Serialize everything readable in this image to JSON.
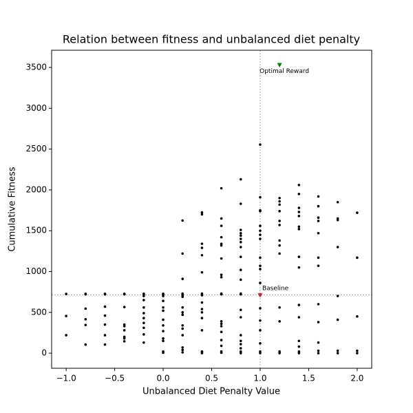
{
  "chart_data": {
    "type": "scatter",
    "title": "Relation between fitness and unbalanced diet penalty",
    "x_label": "Unbalanced Diet Penalty Value",
    "y_label": "Cumulative Fitness",
    "xlim": [
      -1.15,
      2.15
    ],
    "ylim": [
      -185,
      3711
    ],
    "xticks": [
      {
        "value": -1,
        "label": "−1.0"
      },
      {
        "value": -0.5,
        "label": "−0.5"
      },
      {
        "value": 0,
        "label": "0.0"
      },
      0.5,
      {
        "value": 1,
        "label": "1.0"
      },
      1.5,
      {
        "value": 2,
        "label": "2.0"
      }
    ],
    "yticks": [
      0,
      500,
      1000,
      1500,
      2000,
      2500,
      3000,
      3500
    ],
    "ref_lines": {
      "x": 1.0,
      "y": 715,
      "color": "#888888"
    },
    "markers": [
      {
        "label": "Optimal Reward",
        "x": 1.2,
        "y": 3530,
        "color": "green"
      },
      {
        "label": "Baseline",
        "x": 1.0,
        "y": 710,
        "color": "#d62728"
      }
    ],
    "series": [
      {
        "color": "black",
        "x": [
          -1,
          -1,
          -1
        ],
        "values": [
          725,
          455,
          220
        ]
      },
      {
        "color": "black",
        "x": [
          -0.8,
          -0.8,
          -0.8,
          -0.8,
          -0.8,
          -0.8
        ],
        "values": [
          727,
          720,
          545,
          415,
          345,
          105
        ]
      },
      {
        "color": "black",
        "x": [
          -0.6,
          -0.6,
          -0.6,
          -0.6,
          -0.6,
          -0.6,
          -0.6
        ],
        "values": [
          727,
          720,
          570,
          460,
          350,
          220,
          105
        ]
      },
      {
        "color": "black",
        "x": [
          -0.4,
          -0.4,
          -0.4,
          -0.4,
          -0.4,
          -0.4,
          -0.4,
          -0.4,
          -0.4
        ],
        "values": [
          727,
          720,
          565,
          350,
          330,
          280,
          200,
          180,
          145
        ]
      },
      {
        "color": "black",
        "x": [
          -0.2,
          -0.2,
          -0.2,
          -0.2,
          -0.2,
          -0.2,
          -0.2,
          -0.2,
          -0.2,
          -0.2,
          -0.2
        ],
        "values": [
          727,
          720,
          700,
          650,
          560,
          490,
          430,
          370,
          310,
          230,
          130
        ]
      },
      {
        "color": "black",
        "x": [
          0,
          0,
          0,
          0,
          0,
          0,
          0,
          0,
          0,
          0,
          0,
          0,
          0
        ],
        "values": [
          727,
          720,
          700,
          640,
          560,
          520,
          410,
          340,
          270,
          180,
          150,
          20,
          5
        ]
      },
      {
        "color": "black",
        "x": [
          0.2,
          0.2,
          0.2,
          0.2,
          0.2,
          0.2,
          0.2,
          0.2,
          0.2,
          0.2,
          0.2,
          0.2,
          0.2,
          0.2,
          0.2
        ],
        "values": [
          1625,
          1220,
          910,
          730,
          710,
          690,
          560,
          500,
          470,
          340,
          300,
          220,
          70,
          40,
          10
        ]
      },
      {
        "color": "black",
        "x": [
          0.4,
          0.4,
          0.4,
          0.4,
          0.4,
          0.4,
          0.4,
          0.4,
          0.4,
          0.4,
          0.4,
          0.4,
          0.4,
          0.4,
          0.4,
          0.4
        ],
        "values": [
          1725,
          1700,
          1340,
          1290,
          1200,
          990,
          730,
          710,
          620,
          540,
          500,
          430,
          280,
          20,
          10,
          0
        ]
      },
      {
        "color": "black",
        "x": [
          0.6,
          0.6,
          0.6,
          0.6,
          0.6,
          0.6,
          0.6,
          0.6,
          0.6,
          0.6,
          0.6,
          0.6,
          0.6,
          0.6,
          0.6,
          0.6,
          0.6,
          0.6,
          0.6
        ],
        "values": [
          2020,
          1650,
          1560,
          1420,
          1340,
          1320,
          1160,
          960,
          930,
          730,
          720,
          390,
          360,
          330,
          260,
          160,
          90,
          20,
          5
        ]
      },
      {
        "color": "black",
        "x": [
          0.8,
          0.8,
          0.8,
          0.8,
          0.8,
          0.8,
          0.8,
          0.8,
          0.8,
          0.8,
          0.8,
          0.8,
          0.8,
          0.8,
          0.8,
          0.8,
          0.8,
          0.8,
          0.8,
          0.8,
          0.8
        ],
        "values": [
          2130,
          1830,
          1510,
          1470,
          1440,
          1400,
          1360,
          1300,
          1180,
          1020,
          900,
          730,
          720,
          530,
          440,
          220,
          150,
          110,
          60,
          20,
          0
        ]
      },
      {
        "color": "black",
        "x": [
          1,
          1,
          1,
          1,
          1,
          1,
          1,
          1,
          1,
          1,
          1,
          1,
          1,
          1,
          1,
          1,
          1,
          1,
          1
        ],
        "values": [
          2555,
          1910,
          1750,
          1740,
          1560,
          1500,
          1450,
          1400,
          1170,
          1070,
          1030,
          860,
          710,
          550,
          400,
          280,
          120,
          20,
          0
        ]
      },
      {
        "color": "black",
        "x": [
          1.2,
          1.2,
          1.2,
          1.2,
          1.2,
          1.2,
          1.2,
          1.2,
          1.2,
          1.2,
          1.2,
          1.2,
          1.2
        ],
        "values": [
          1900,
          1860,
          1820,
          1740,
          1620,
          1570,
          1380,
          1320,
          1220,
          560,
          390,
          20,
          0
        ]
      },
      {
        "color": "black",
        "x": [
          1.4,
          1.4,
          1.4,
          1.4,
          1.4,
          1.4,
          1.4,
          1.4,
          1.4,
          1.4,
          1.4,
          1.4,
          1.4,
          1.4,
          1.4
        ],
        "values": [
          2060,
          1950,
          1780,
          1730,
          1680,
          1550,
          1520,
          1180,
          1050,
          590,
          440,
          150,
          80,
          20,
          0
        ]
      },
      {
        "color": "black",
        "x": [
          1.6,
          1.6,
          1.6,
          1.6,
          1.6,
          1.6,
          1.6,
          1.6,
          1.6,
          1.6,
          1.6,
          1.6
        ],
        "values": [
          1920,
          1800,
          1660,
          1620,
          1470,
          1170,
          1070,
          600,
          380,
          130,
          30,
          0
        ]
      },
      {
        "color": "black",
        "x": [
          1.8,
          1.8,
          1.8,
          1.8,
          1.8,
          1.8,
          1.8,
          1.8
        ],
        "values": [
          1850,
          1650,
          1630,
          1300,
          700,
          410,
          30,
          0
        ]
      },
      {
        "color": "black",
        "x": [
          2,
          2,
          2,
          2,
          2
        ],
        "values": [
          1720,
          1170,
          450,
          30,
          0
        ]
      }
    ]
  }
}
